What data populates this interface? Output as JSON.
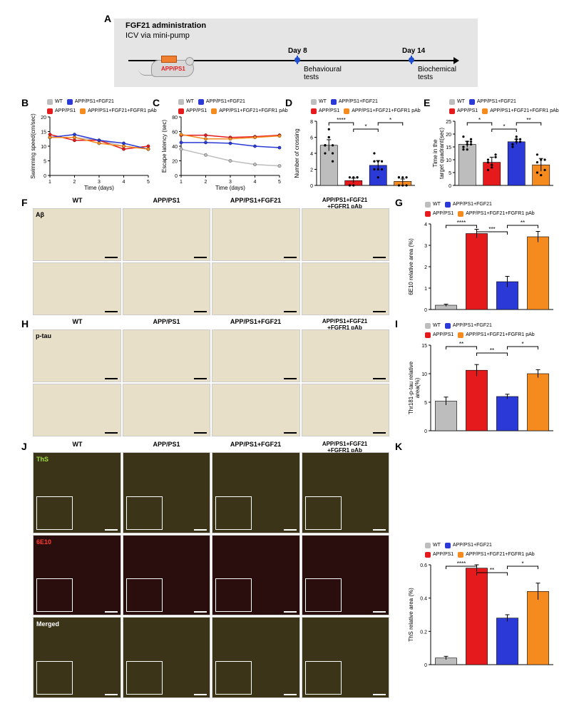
{
  "colors": {
    "wt": "#bdbdbd",
    "appps1": "#e41a1c",
    "fgf21": "#2b3ad6",
    "fgfr1": "#f58b1f",
    "axis": "#000000",
    "panel_bg": "#e5e5e5",
    "timeline_marker": "#2050d0",
    "micrograph_ihc": "#e8dfc8",
    "micrograph_ths": "#3b3418",
    "micrograph_6e10": "#2a0d0d"
  },
  "panel_labels": [
    "A",
    "B",
    "C",
    "D",
    "E",
    "F",
    "G",
    "H",
    "I",
    "J",
    "K"
  ],
  "groups": {
    "short": [
      "WT",
      "APP/PS1",
      "APP/PS1+FGF21",
      "APP/PS1+FGF21+FGFR1 pAb"
    ],
    "legend": {
      "wt": "WT",
      "appps1": "APP/PS1",
      "fgf21": "APP/PS1+FGF21",
      "fgfr1": "APP/PS1+FGF21+FGFR1 pAb"
    }
  },
  "panelA": {
    "title": "FGF21 administration",
    "subtitle": "ICV via mini-pump",
    "mouse_label": "APP/PS1",
    "day8": "Day 8",
    "day14": "Day 14",
    "beh": "Behavioural\ntests",
    "bio": "Biochemical\ntests"
  },
  "panelB": {
    "type": "line",
    "xlabel": "Time (days)",
    "ylabel": "Swimming speed(cm/sec)",
    "xticks": [
      1,
      2,
      3,
      4,
      5
    ],
    "ylim": [
      0,
      20
    ],
    "yticks": [
      0,
      5,
      10,
      15,
      20
    ],
    "series": {
      "wt": [
        13,
        13,
        12,
        10,
        9
      ],
      "appps1": [
        14,
        12,
        12,
        9,
        10
      ],
      "fgf21": [
        13,
        14,
        12,
        11,
        9
      ],
      "fgfr1": [
        13,
        13,
        11,
        10,
        9
      ]
    },
    "title_fontsize": 8
  },
  "panelC": {
    "type": "line",
    "xlabel": "Time (days)",
    "ylabel": "Escape latency (sec)",
    "xticks": [
      1,
      2,
      3,
      4,
      5
    ],
    "ylim": [
      0,
      80
    ],
    "yticks": [
      0,
      20,
      40,
      60,
      80
    ],
    "series": {
      "wt": [
        36,
        28,
        20,
        15,
        13
      ],
      "appps1": [
        55,
        55,
        52,
        53,
        55
      ],
      "fgf21": [
        45,
        45,
        44,
        40,
        38
      ],
      "fgfr1": [
        56,
        50,
        50,
        52,
        54
      ]
    },
    "day5_sig": [
      "$",
      "#",
      "****"
    ]
  },
  "panelD": {
    "type": "bar-scatter",
    "ylabel": "Number of crossing",
    "ylim": [
      0,
      8
    ],
    "yticks": [
      0,
      2,
      4,
      6,
      8
    ],
    "values": {
      "wt": 5.0,
      "appps1": 0.6,
      "fgf21": 2.5,
      "fgfr1": 0.5
    },
    "errs": {
      "wt": 0.7,
      "appps1": 0.3,
      "fgf21": 0.6,
      "fgfr1": 0.3
    },
    "points": {
      "wt": [
        5,
        6,
        4,
        5,
        7,
        3,
        4,
        6,
        5,
        5
      ],
      "appps1": [
        1,
        0,
        1,
        0,
        1,
        1,
        0
      ],
      "fgf21": [
        3,
        2,
        2,
        4,
        1,
        3,
        2,
        3
      ],
      "fgfr1": [
        0,
        1,
        0,
        1,
        0,
        1,
        1
      ]
    },
    "sig": [
      [
        "wt",
        "appps1",
        "****"
      ],
      [
        "appps1",
        "fgf21",
        "*"
      ],
      [
        "fgf21",
        "fgfr1",
        "*"
      ]
    ]
  },
  "panelE": {
    "type": "bar-scatter",
    "ylabel": "Time in the\ntarget quadrant(sec)",
    "ylim": [
      0,
      25
    ],
    "yticks": [
      0,
      5,
      10,
      15,
      20,
      25
    ],
    "values": {
      "wt": 16,
      "appps1": 9,
      "fgf21": 17,
      "fgfr1": 8
    },
    "errs": {
      "wt": 1.2,
      "appps1": 2,
      "fgf21": 1,
      "fgfr1": 2.5
    },
    "points": {
      "wt": [
        14,
        16,
        18,
        15,
        17,
        16,
        19,
        14,
        17,
        15
      ],
      "appps1": [
        6,
        8,
        12,
        10,
        7,
        11,
        9
      ],
      "fgf21": [
        16,
        17,
        18,
        15,
        19,
        17,
        16,
        18
      ],
      "fgfr1": [
        5,
        10,
        6,
        12,
        4,
        10,
        9
      ]
    },
    "sig": [
      [
        "wt",
        "appps1",
        "*"
      ],
      [
        "appps1",
        "fgf21",
        "*"
      ],
      [
        "fgf21",
        "fgfr1",
        "**"
      ]
    ]
  },
  "panelF": {
    "stain": "Aβ",
    "rows": 2,
    "cols": 4
  },
  "panelG": {
    "type": "bar",
    "ylabel": "6E10 relative area (%)",
    "ylim": [
      0,
      4
    ],
    "yticks": [
      0,
      1,
      2,
      3,
      4
    ],
    "values": {
      "wt": 0.2,
      "appps1": 3.55,
      "fgf21": 1.3,
      "fgfr1": 3.4
    },
    "errs": {
      "wt": 0.05,
      "appps1": 0.2,
      "fgf21": 0.25,
      "fgfr1": 0.25
    },
    "sig": [
      [
        "wt",
        "appps1",
        "****"
      ],
      [
        "appps1",
        "fgf21",
        "***"
      ],
      [
        "fgf21",
        "fgfr1",
        "**"
      ]
    ]
  },
  "panelH": {
    "stain": "p-tau",
    "rows": 2,
    "cols": 4
  },
  "panelI": {
    "type": "bar",
    "ylabel": "Thr181-p-tau relative\narea(%)",
    "ylim": [
      0,
      15
    ],
    "yticks": [
      0,
      5,
      10,
      15
    ],
    "values": {
      "wt": 5.2,
      "appps1": 10.6,
      "fgf21": 6.0,
      "fgfr1": 10.0
    },
    "errs": {
      "wt": 0.7,
      "appps1": 1.0,
      "fgf21": 0.4,
      "fgfr1": 0.7
    },
    "sig": [
      [
        "wt",
        "appps1",
        "**"
      ],
      [
        "appps1",
        "fgf21",
        "**"
      ],
      [
        "fgf21",
        "fgfr1",
        "*"
      ]
    ]
  },
  "panelJ": {
    "rows_labels": [
      "ThS",
      "6E10",
      "Merged"
    ],
    "cols": 4
  },
  "panelK": {
    "type": "bar",
    "ylabel": "ThS relative area (%)",
    "ylim": [
      0,
      0.6
    ],
    "yticks": [
      0.0,
      0.2,
      0.4,
      0.6
    ],
    "values": {
      "wt": 0.04,
      "appps1": 0.58,
      "fgf21": 0.28,
      "fgfr1": 0.44
    },
    "errs": {
      "wt": 0.01,
      "appps1": 0.02,
      "fgf21": 0.02,
      "fgfr1": 0.05
    },
    "sig": [
      [
        "wt",
        "appps1",
        "****"
      ],
      [
        "appps1",
        "fgf21",
        "**"
      ],
      [
        "fgf21",
        "fgfr1",
        "*"
      ]
    ]
  }
}
